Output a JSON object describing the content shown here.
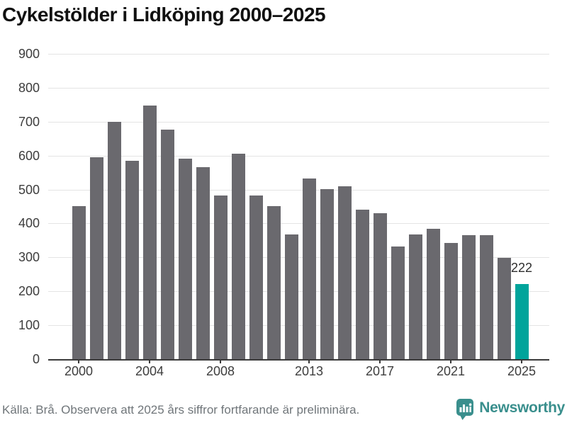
{
  "title": "Cykelstölder i Lidköping 2000–2025",
  "chart_data": {
    "type": "bar",
    "title": "Cykelstölder i Lidköping 2000–2025",
    "categories": [
      2000,
      2001,
      2002,
      2003,
      2004,
      2005,
      2006,
      2007,
      2008,
      2009,
      2010,
      2011,
      2012,
      2013,
      2014,
      2015,
      2016,
      2017,
      2018,
      2019,
      2020,
      2021,
      2022,
      2023,
      2024,
      2025
    ],
    "values": [
      452,
      595,
      700,
      585,
      748,
      676,
      590,
      565,
      483,
      605,
      483,
      452,
      367,
      533,
      502,
      510,
      441,
      430,
      332,
      367,
      385,
      343,
      366,
      366,
      298,
      222
    ],
    "xlabel": "",
    "ylabel": "",
    "ylim": [
      0,
      900
    ],
    "yticks": [
      0,
      100,
      200,
      300,
      400,
      500,
      600,
      700,
      800,
      900
    ],
    "xticks": [
      2000,
      2004,
      2008,
      2013,
      2017,
      2021,
      2025
    ],
    "grid": true,
    "legend": "none",
    "bar_color": "#6a696e",
    "highlight_category": 2025,
    "highlight_color": "#00a49b",
    "highlight_value_label": "222"
  },
  "footer": {
    "source_text": "Källa: Brå. Observera att 2025 års siffror fortfarande är preliminära.",
    "brand": "Newsworthy",
    "brand_color": "#3a8f8d"
  },
  "icons": {
    "logo": "newsworthy-logo"
  }
}
